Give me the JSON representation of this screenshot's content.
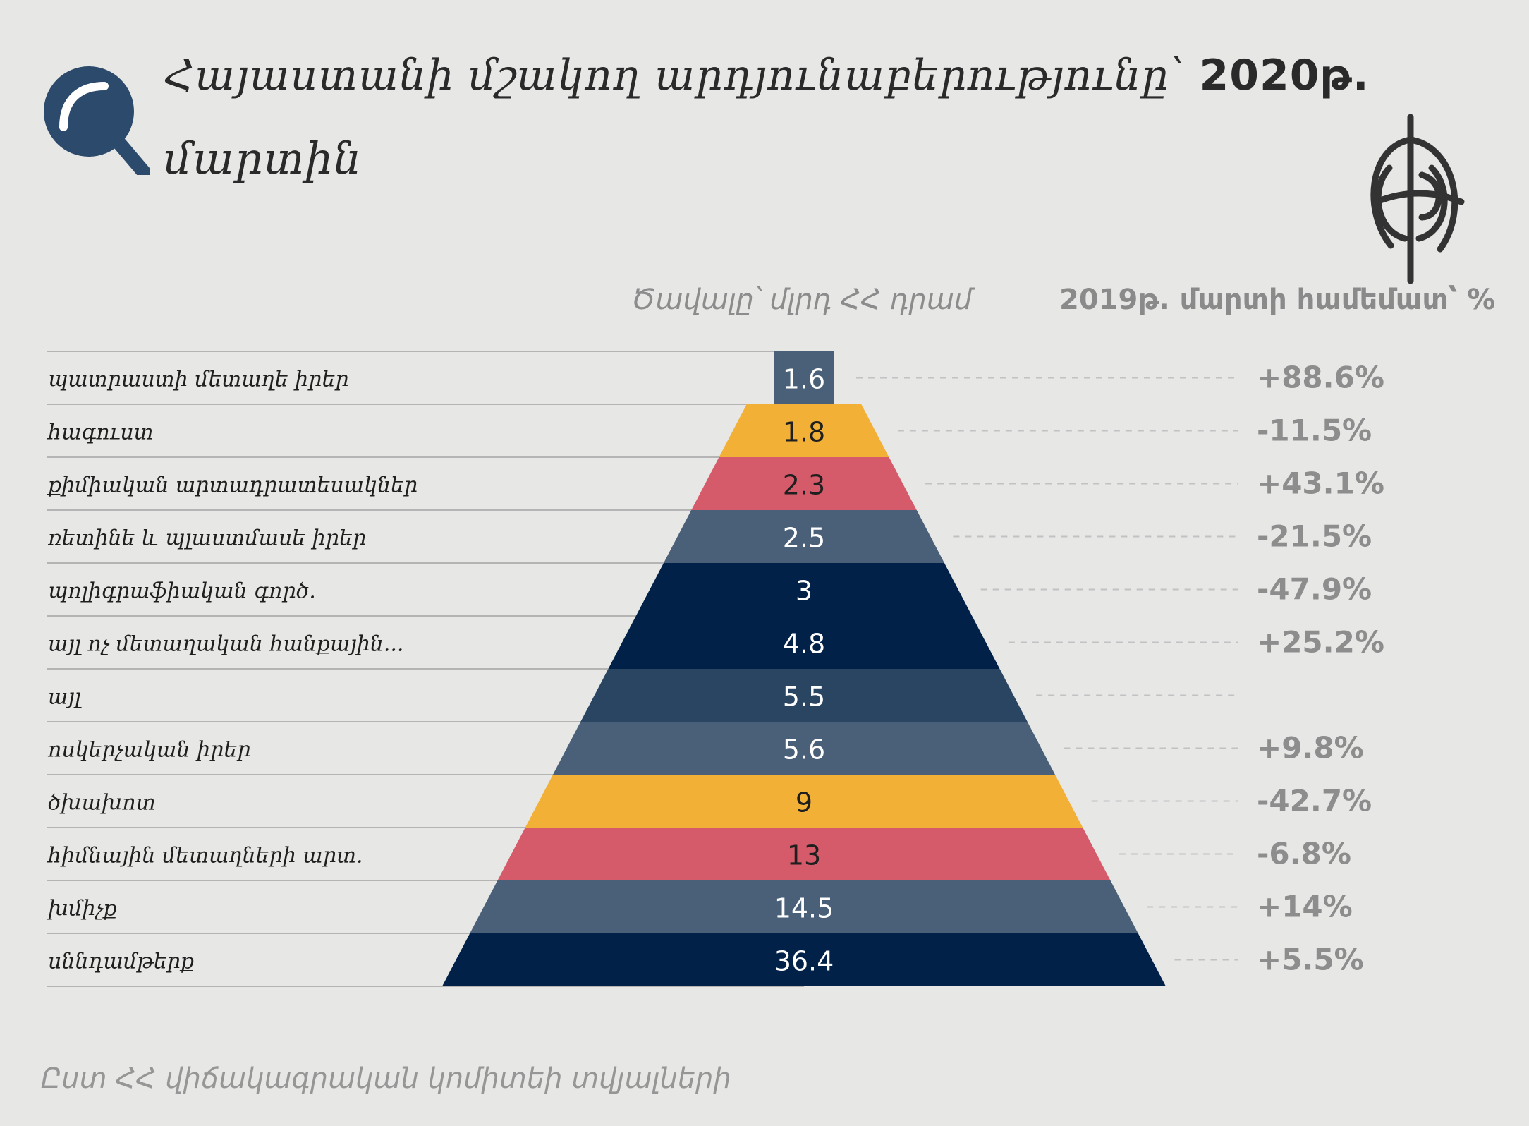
{
  "title": {
    "line1": "Հայաստանի մշակող արդյունաբերությունը՝",
    "year": "2020թ.",
    "line2": "մարտին"
  },
  "column_headers": {
    "volume": "Ծավալը՝ մլրդ ՀՀ դրամ",
    "change": "2019թ. մարտի համեմատ՝ %"
  },
  "source": "Ըստ ՀՀ վիճակագրական կոմիտեի տվյալների",
  "icons": {
    "search": "search-icon",
    "logo": "emblem-logo"
  },
  "colors": {
    "slate": "#4a6079",
    "yellow": "#f2b036",
    "red": "#d65b6a",
    "navy": "#022148",
    "dark_slate": "#2a4562"
  },
  "chart_data": {
    "type": "bar",
    "title": "Հայաստանի մշակող արդյունաբերությունը՝ 2020թ. մարտին",
    "value_label": "Ծավալը՝ մլրդ ՀՀ դրամ",
    "change_label": "2019թ. մարտի համեմատ՝ %",
    "categories": [
      "պատրաստի մետաղե իրեր",
      "հագուստ",
      "քիմիական արտադրատեսակներ",
      "ռետինե և պլաստմասե իրեր",
      "պոլիգրաֆիական գործ.",
      "այլ ոչ մետաղական հանքային...",
      "այլ",
      "ոսկերչական իրեր",
      "ծխախոտ",
      "հիմնային մետաղների արտ.",
      "խմիչք",
      "սննդամթերք"
    ],
    "values": [
      1.6,
      1.8,
      2.3,
      2.5,
      3,
      4.8,
      5.5,
      5.6,
      9,
      13,
      14.5,
      36.4
    ],
    "value_text": [
      "1.6",
      "1.8",
      "2.3",
      "2.5",
      "3",
      "4.8",
      "5.5",
      "5.6",
      "9",
      "13",
      "14.5",
      "36.4"
    ],
    "changes": [
      "+88.6%",
      "-11.5%",
      "+43.1%",
      "-21.5%",
      "-47.9%",
      "+25.2%",
      "",
      "+9.8%",
      "-42.7%",
      "-6.8%",
      "+14%",
      "+5.5%"
    ],
    "colors": [
      "#4a6079",
      "#f2b036",
      "#d65b6a",
      "#4a6079",
      "#022148",
      "#022148",
      "#2a4562",
      "#4a6079",
      "#f2b036",
      "#d65b6a",
      "#4a6079",
      "#022148"
    ],
    "value_text_colors": [
      "#ffffff",
      "#1f1f1f",
      "#1f1f1f",
      "#ffffff",
      "#ffffff",
      "#ffffff",
      "#ffffff",
      "#ffffff",
      "#1f1f1f",
      "#1f1f1f",
      "#ffffff",
      "#ffffff"
    ]
  }
}
